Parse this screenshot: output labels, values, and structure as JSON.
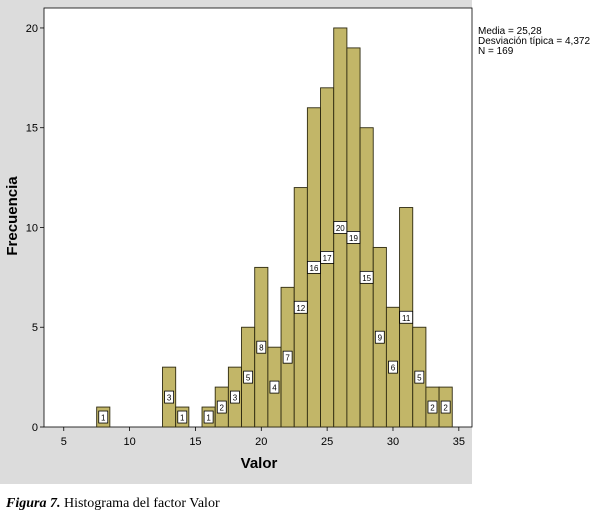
{
  "chart_data": {
    "type": "bar",
    "xlabel": "Valor",
    "ylabel": "Frecuencia",
    "xlim": [
      3.5,
      36
    ],
    "ylim": [
      0,
      21
    ],
    "x_ticks": [
      5,
      10,
      15,
      20,
      25,
      30,
      35
    ],
    "y_ticks": [
      0,
      5,
      10,
      15,
      20
    ],
    "bin_width": 1,
    "bins": [
      {
        "x": 8,
        "value": 1,
        "label": "1"
      },
      {
        "x": 13,
        "value": 3,
        "label": "3"
      },
      {
        "x": 14,
        "value": 1,
        "label": "1"
      },
      {
        "x": 16,
        "value": 1,
        "label": "1"
      },
      {
        "x": 17,
        "value": 2,
        "label": "2"
      },
      {
        "x": 18,
        "value": 3,
        "label": "3"
      },
      {
        "x": 19,
        "value": 5,
        "label": "5"
      },
      {
        "x": 20,
        "value": 8,
        "label": "8"
      },
      {
        "x": 21,
        "value": 4,
        "label": "4"
      },
      {
        "x": 22,
        "value": 7,
        "label": "7"
      },
      {
        "x": 23,
        "value": 12,
        "label": "12"
      },
      {
        "x": 24,
        "value": 16,
        "label": "16"
      },
      {
        "x": 25,
        "value": 17,
        "label": "17"
      },
      {
        "x": 26,
        "value": 20,
        "label": "20"
      },
      {
        "x": 27,
        "value": 19,
        "label": "19"
      },
      {
        "x": 28,
        "value": 15,
        "label": "15"
      },
      {
        "x": 29,
        "value": 9,
        "label": "9"
      },
      {
        "x": 30,
        "value": 6,
        "label": "6"
      },
      {
        "x": 31,
        "value": 11,
        "label": "11"
      },
      {
        "x": 32,
        "value": 5,
        "label": "5"
      },
      {
        "x": 33,
        "value": 2,
        "label": "2"
      },
      {
        "x": 34,
        "value": 2,
        "label": "2"
      }
    ],
    "colors": {
      "bar_fill": "#c2b668",
      "bar_stroke": "#2e2a10",
      "plot_background": "#ffffff",
      "outer_background": "#dcdcdc",
      "label_box": "#ffffff"
    },
    "stats": {
      "mean": "Media = 25,28",
      "sd": "Desviación típica = 4,372",
      "n": "N = 169"
    }
  },
  "caption": {
    "figure": "Figura 7.",
    "text": "Histograma del factor Valor"
  }
}
